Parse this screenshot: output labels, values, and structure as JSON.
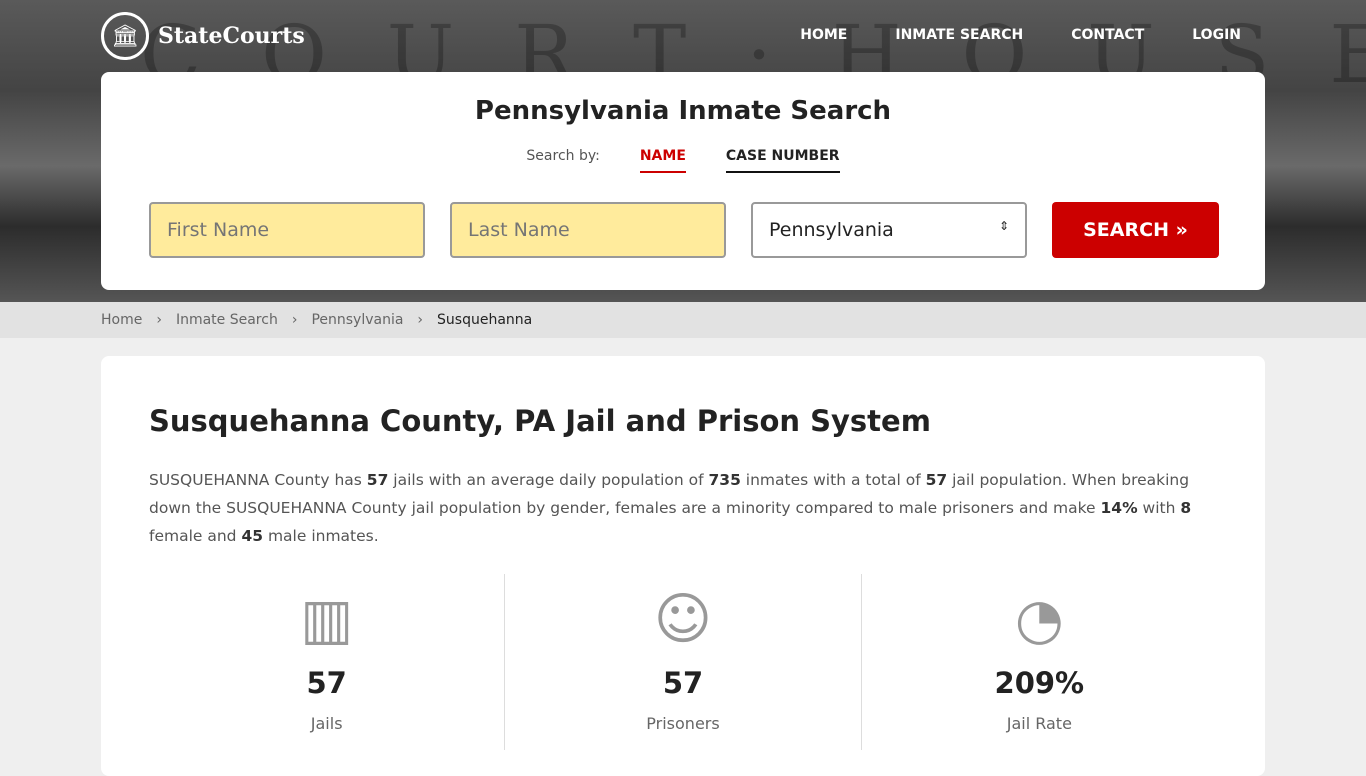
{
  "brand": {
    "name": "StateCourts"
  },
  "nav": [
    "HOME",
    "INMATE SEARCH",
    "CONTACT",
    "LOGIN"
  ],
  "search": {
    "title": "Pennsylvania Inmate Search",
    "search_by": "Search by:",
    "tabs": [
      "NAME",
      "CASE NUMBER"
    ],
    "first_placeholder": "First Name",
    "last_placeholder": "Last Name",
    "state": "Pennsylvania",
    "button": "SEARCH »"
  },
  "breadcrumbs": [
    "Home",
    "Inmate Search",
    "Pennsylvania",
    "Susquehanna"
  ],
  "main": {
    "title": "Susquehanna County, PA Jail and Prison System",
    "p": [
      "SUSQUEHANNA County has ",
      "57",
      " jails with an average daily population of ",
      "735",
      " inmates with a total of ",
      "57",
      " jail population. When breaking down the SUSQUEHANNA County jail population by gender, females are a minority compared to male prisoners and make ",
      "14%",
      " with ",
      "8",
      " female and ",
      "45",
      " male inmates."
    ],
    "stats": [
      {
        "value": "57",
        "label": "Jails",
        "icon": "jail-icon"
      },
      {
        "value": "57",
        "label": "Prisoners",
        "icon": "prisoner-icon"
      },
      {
        "value": "209%",
        "label": "Jail Rate",
        "icon": "pie-chart-icon"
      }
    ]
  }
}
